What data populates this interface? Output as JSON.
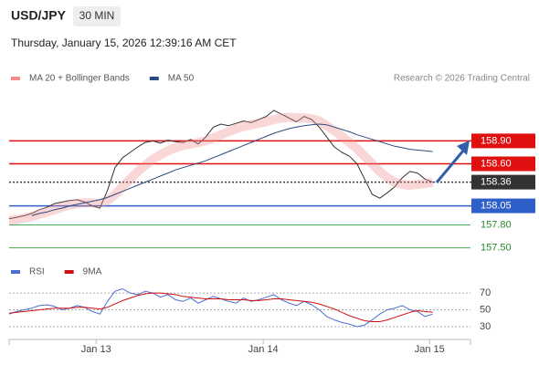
{
  "header": {
    "symbol": "USD/JPY",
    "interval": "30 MIN",
    "timestamp": "Thursday, January 15, 2026 12:39:16 AM CET",
    "credit": "Research © 2026 Trading Central"
  },
  "chart_data": [
    {
      "type": "line",
      "x": [
        0,
        1,
        2,
        3,
        4,
        5,
        6,
        7,
        8,
        9,
        10,
        11,
        12,
        13,
        14,
        15,
        16,
        17,
        18,
        19,
        20,
        21,
        22,
        23,
        24,
        25,
        26,
        27,
        28,
        29,
        30,
        31,
        32,
        33,
        34,
        35,
        36,
        37,
        38,
        39,
        40,
        41,
        42,
        43,
        44,
        45,
        46,
        47,
        48,
        49,
        50,
        51,
        52,
        53,
        54,
        55,
        56
      ],
      "xlim": [
        0,
        61
      ],
      "ylim": [
        157.34,
        159.55
      ],
      "series": [
        {
          "color": "#333333",
          "values": [
            157.88,
            157.9,
            157.92,
            157.95,
            158.0,
            158.03,
            158.08,
            158.1,
            158.12,
            158.13,
            158.1,
            158.05,
            158.02,
            158.25,
            158.55,
            158.68,
            158.75,
            158.82,
            158.88,
            158.9,
            158.87,
            158.91,
            158.89,
            158.88,
            158.92,
            158.86,
            158.95,
            159.08,
            159.12,
            159.1,
            159.13,
            159.16,
            159.14,
            159.18,
            159.22,
            159.3,
            159.25,
            159.2,
            159.15,
            159.22,
            159.18,
            159.08,
            158.95,
            158.82,
            158.75,
            158.7,
            158.6,
            158.4,
            158.2,
            158.15,
            158.22,
            158.3,
            158.42,
            158.5,
            158.48,
            158.4,
            158.36
          ]
        },
        {
          "name": "MA 20 + Bollinger Bands",
          "color": "#f08c8c",
          "values": [
            157.86,
            157.87,
            157.89,
            157.91,
            157.94,
            157.97,
            158.0,
            158.03,
            158.06,
            158.08,
            158.09,
            158.09,
            158.08,
            158.12,
            158.2,
            158.3,
            158.4,
            158.5,
            158.58,
            158.66,
            158.72,
            158.77,
            158.81,
            158.84,
            158.86,
            158.88,
            158.9,
            158.94,
            158.98,
            159.02,
            159.06,
            159.09,
            159.11,
            159.13,
            159.15,
            159.18,
            159.2,
            159.21,
            159.2,
            159.2,
            159.19,
            159.16,
            159.1,
            159.03,
            158.96,
            158.88,
            158.8,
            158.7,
            158.6,
            158.5,
            158.42,
            158.36,
            158.33,
            158.32,
            158.33,
            158.34,
            158.36
          ]
        },
        {
          "name": "MA 50",
          "color": "#2b4a80",
          "values": [
            null,
            null,
            null,
            157.92,
            157.95,
            157.97,
            158.0,
            158.02,
            158.05,
            158.07,
            158.09,
            158.11,
            158.13,
            158.16,
            158.2,
            158.24,
            158.28,
            158.32,
            158.36,
            158.4,
            158.44,
            158.48,
            158.52,
            158.55,
            158.58,
            158.61,
            158.64,
            158.68,
            158.72,
            158.76,
            158.8,
            158.84,
            158.88,
            158.92,
            158.96,
            159.0,
            159.03,
            159.06,
            159.08,
            159.1,
            159.11,
            159.12,
            159.11,
            159.08,
            159.05,
            159.02,
            158.98,
            158.95,
            158.92,
            158.89,
            158.86,
            158.83,
            158.81,
            158.79,
            158.78,
            158.77,
            158.76
          ]
        }
      ],
      "levels": [
        {
          "value": 158.9,
          "label": "158.90",
          "color": "#e01010"
        },
        {
          "value": 158.6,
          "label": "158.60",
          "color": "#e01010"
        },
        {
          "value": 158.36,
          "label": "158.36",
          "color": "#333333"
        },
        {
          "value": 158.05,
          "label": "158.05",
          "color": "#2f5fc8"
        },
        {
          "value": 157.8,
          "label": "157.80",
          "color": "#4aa84a"
        },
        {
          "value": 157.5,
          "label": "157.50",
          "color": "#4aa84a"
        }
      ]
    },
    {
      "type": "line",
      "x": [
        0,
        1,
        2,
        3,
        4,
        5,
        6,
        7,
        8,
        9,
        10,
        11,
        12,
        13,
        14,
        15,
        16,
        17,
        18,
        19,
        20,
        21,
        22,
        23,
        24,
        25,
        26,
        27,
        28,
        29,
        30,
        31,
        32,
        33,
        34,
        35,
        36,
        37,
        38,
        39,
        40,
        41,
        42,
        43,
        44,
        45,
        46,
        47,
        48,
        49,
        50,
        51,
        52,
        53,
        54,
        55,
        56
      ],
      "xlim": [
        0,
        61
      ],
      "ylim": [
        17,
        82
      ],
      "yticks": [
        70,
        50,
        30
      ],
      "xticks": [
        {
          "value": 11.5,
          "label": "Jan 13"
        },
        {
          "value": 33.6,
          "label": "Jan 14"
        },
        {
          "value": 55.6,
          "label": "Jan 15"
        }
      ],
      "series": [
        {
          "name": "RSI",
          "color": "#4a6fd0",
          "values": [
            45,
            48,
            50,
            52,
            55,
            56,
            54,
            50,
            52,
            55,
            53,
            48,
            45,
            60,
            72,
            75,
            70,
            68,
            72,
            70,
            65,
            68,
            62,
            60,
            64,
            58,
            62,
            66,
            63,
            60,
            58,
            64,
            60,
            62,
            65,
            68,
            62,
            58,
            55,
            60,
            56,
            50,
            42,
            38,
            35,
            33,
            30,
            32,
            38,
            45,
            50,
            52,
            55,
            50,
            48,
            42,
            45
          ]
        },
        {
          "name": "9MA",
          "color": "#d01010",
          "values": [
            46,
            47,
            48,
            49,
            50,
            51,
            52,
            52,
            52,
            53,
            53,
            52,
            51,
            53,
            57,
            61,
            64,
            67,
            69,
            70,
            70,
            69,
            68,
            66,
            65,
            64,
            63,
            63,
            63,
            62,
            62,
            62,
            61,
            61,
            62,
            63,
            63,
            62,
            61,
            60,
            59,
            57,
            54,
            51,
            47,
            43,
            40,
            37,
            36,
            36,
            38,
            41,
            44,
            47,
            49,
            48,
            47
          ]
        }
      ]
    }
  ]
}
